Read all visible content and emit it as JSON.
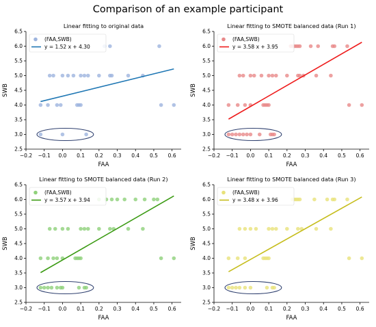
{
  "figure": {
    "title": "Comparison of an example participant"
  },
  "chart_data": [
    {
      "type": "scatter",
      "title": "Linear fitting to original data",
      "xlabel": "FAA",
      "ylabel": "SWB",
      "xlim": [
        -0.2,
        0.65
      ],
      "ylim": [
        2.5,
        6.5
      ],
      "xticks": [
        "−0.2",
        "−0.1",
        "0.0",
        "0.1",
        "0.2",
        "0.3",
        "0.4",
        "0.5",
        "0.6"
      ],
      "yticks": [
        "2.5",
        "3.0",
        "3.5",
        "4.0",
        "4.5",
        "5.0",
        "5.5",
        "6.0",
        "6.5"
      ],
      "legend_position": "top-left",
      "series": [
        {
          "name": "(FAA,SWB)",
          "kind": "points",
          "color": "#9db4de",
          "points": [
            [
              -0.12,
              3.0
            ],
            [
              0.0,
              3.0
            ],
            [
              0.13,
              3.0
            ],
            [
              -0.12,
              4.0
            ],
            [
              -0.08,
              4.0
            ],
            [
              -0.03,
              4.0
            ],
            [
              -0.01,
              4.0
            ],
            [
              0.08,
              4.0
            ],
            [
              0.09,
              4.0
            ],
            [
              0.1,
              4.0
            ],
            [
              0.54,
              4.0
            ],
            [
              0.61,
              4.0
            ],
            [
              -0.07,
              5.0
            ],
            [
              -0.05,
              5.0
            ],
            [
              0.0,
              5.0
            ],
            [
              0.03,
              5.0
            ],
            [
              0.06,
              5.0
            ],
            [
              0.1,
              5.0
            ],
            [
              0.12,
              5.0
            ],
            [
              0.14,
              5.0
            ],
            [
              0.2,
              5.0
            ],
            [
              0.26,
              5.0
            ],
            [
              0.27,
              5.0
            ],
            [
              0.36,
              5.0
            ],
            [
              0.44,
              5.0
            ],
            [
              0.23,
              6.0
            ],
            [
              0.26,
              6.0
            ],
            [
              0.53,
              6.0
            ]
          ]
        },
        {
          "name": "y = 1.52 x + 4.30",
          "kind": "line",
          "color": "#1f77b4",
          "slope": 1.52,
          "intercept": 4.3,
          "x_range": [
            -0.12,
            0.61
          ]
        }
      ],
      "annotations": [
        "ellipse around SWB = 3.0 points"
      ]
    },
    {
      "type": "scatter",
      "title": "Linear fitting to SMOTE balanced data (Run 1)",
      "xlabel": "FAA",
      "ylabel": "SWB",
      "xlim": [
        -0.2,
        0.65
      ],
      "ylim": [
        2.5,
        6.5
      ],
      "xticks": [
        "−0.2",
        "−0.1",
        "0.0",
        "0.1",
        "0.2",
        "0.3",
        "0.4",
        "0.5",
        "0.6"
      ],
      "yticks": [
        "2.5",
        "3.0",
        "3.5",
        "4.0",
        "4.5",
        "5.0",
        "5.5",
        "6.0",
        "6.5"
      ],
      "legend_position": "top-left",
      "series": [
        {
          "name": "(FAA,SWB)",
          "kind": "points",
          "color": "#e8898a",
          "points": [
            [
              -0.12,
              3.0
            ],
            [
              -0.1,
              3.0
            ],
            [
              -0.08,
              3.0
            ],
            [
              -0.06,
              3.0
            ],
            [
              -0.04,
              3.0
            ],
            [
              -0.02,
              3.0
            ],
            [
              0.0,
              3.0
            ],
            [
              0.05,
              3.0
            ],
            [
              0.11,
              3.0
            ],
            [
              0.12,
              3.0
            ],
            [
              0.13,
              3.0
            ],
            [
              -0.12,
              4.0
            ],
            [
              -0.07,
              4.0
            ],
            [
              -0.03,
              4.0
            ],
            [
              0.0,
              4.0
            ],
            [
              0.07,
              4.0
            ],
            [
              0.08,
              4.0
            ],
            [
              0.09,
              4.0
            ],
            [
              0.1,
              4.0
            ],
            [
              0.54,
              4.0
            ],
            [
              0.61,
              4.0
            ],
            [
              -0.06,
              5.0
            ],
            [
              -0.04,
              5.0
            ],
            [
              0.0,
              5.0
            ],
            [
              0.02,
              5.0
            ],
            [
              0.06,
              5.0
            ],
            [
              0.1,
              5.0
            ],
            [
              0.12,
              5.0
            ],
            [
              0.14,
              5.0
            ],
            [
              0.2,
              5.0
            ],
            [
              0.26,
              5.0
            ],
            [
              0.27,
              5.0
            ],
            [
              0.29,
              5.0
            ],
            [
              0.36,
              5.0
            ],
            [
              0.44,
              5.0
            ],
            [
              0.22,
              6.0
            ],
            [
              0.23,
              6.0
            ],
            [
              0.24,
              6.0
            ],
            [
              0.25,
              6.0
            ],
            [
              0.26,
              6.0
            ],
            [
              0.27,
              6.0
            ],
            [
              0.33,
              6.0
            ],
            [
              0.37,
              6.0
            ],
            [
              0.45,
              6.0
            ],
            [
              0.46,
              6.0
            ],
            [
              0.53,
              6.0
            ]
          ]
        },
        {
          "name": "y = 3.58 x + 3.95",
          "kind": "line",
          "color": "#ee1c1c",
          "slope": 3.58,
          "intercept": 3.95,
          "x_range": [
            -0.12,
            0.61
          ]
        }
      ],
      "annotations": [
        "ellipse around SWB = 3.0 points"
      ]
    },
    {
      "type": "scatter",
      "title": "Linear fitting to SMOTE balanced data (Run 2)",
      "xlabel": "FAA",
      "ylabel": "SWB",
      "xlim": [
        -0.2,
        0.65
      ],
      "ylim": [
        2.5,
        6.5
      ],
      "xticks": [
        "−0.2",
        "−0.1",
        "0.0",
        "0.1",
        "0.2",
        "0.3",
        "0.4",
        "0.5",
        "0.6"
      ],
      "yticks": [
        "2.5",
        "3.0",
        "3.5",
        "4.0",
        "4.5",
        "5.0",
        "5.5",
        "6.0",
        "6.5"
      ],
      "legend_position": "top-left",
      "series": [
        {
          "name": "(FAA,SWB)",
          "kind": "points",
          "color": "#8fd17a",
          "points": [
            [
              -0.12,
              3.0
            ],
            [
              -0.1,
              3.0
            ],
            [
              -0.08,
              3.0
            ],
            [
              -0.06,
              3.0
            ],
            [
              -0.03,
              3.0
            ],
            [
              -0.01,
              3.0
            ],
            [
              0.0,
              3.0
            ],
            [
              0.09,
              3.0
            ],
            [
              0.12,
              3.0
            ],
            [
              0.13,
              3.0
            ],
            [
              -0.12,
              4.0
            ],
            [
              -0.08,
              4.0
            ],
            [
              -0.05,
              4.0
            ],
            [
              -0.03,
              4.0
            ],
            [
              0.0,
              4.0
            ],
            [
              0.07,
              4.0
            ],
            [
              0.08,
              4.0
            ],
            [
              0.09,
              4.0
            ],
            [
              0.1,
              4.0
            ],
            [
              0.54,
              4.0
            ],
            [
              0.61,
              4.0
            ],
            [
              -0.07,
              5.0
            ],
            [
              -0.04,
              5.0
            ],
            [
              0.0,
              5.0
            ],
            [
              0.03,
              5.0
            ],
            [
              0.1,
              5.0
            ],
            [
              0.12,
              5.0
            ],
            [
              0.14,
              5.0
            ],
            [
              0.2,
              5.0
            ],
            [
              0.26,
              5.0
            ],
            [
              0.28,
              5.0
            ],
            [
              0.36,
              5.0
            ],
            [
              0.44,
              5.0
            ],
            [
              0.2,
              6.0
            ],
            [
              0.24,
              6.0
            ],
            [
              0.27,
              6.0
            ],
            [
              0.3,
              6.0
            ],
            [
              0.34,
              6.0
            ],
            [
              0.4,
              6.0
            ],
            [
              0.45,
              6.0
            ],
            [
              0.5,
              6.0
            ],
            [
              0.52,
              6.0
            ]
          ]
        },
        {
          "name": "y = 3.57 x + 3.94",
          "kind": "line",
          "color": "#3a9a12",
          "slope": 3.57,
          "intercept": 3.94,
          "x_range": [
            -0.12,
            0.61
          ]
        }
      ],
      "annotations": [
        "ellipse around SWB = 3.0 points"
      ]
    },
    {
      "type": "scatter",
      "title": "Linear fitting to SMOTE balanced data (Run 3)",
      "xlabel": "FAA",
      "ylabel": "SWB",
      "xlim": [
        -0.2,
        0.65
      ],
      "ylim": [
        2.5,
        6.5
      ],
      "xticks": [
        "−0.2",
        "−0.1",
        "0.0",
        "0.1",
        "0.2",
        "0.3",
        "0.4",
        "0.5",
        "0.6"
      ],
      "yticks": [
        "2.5",
        "3.0",
        "3.5",
        "4.0",
        "4.5",
        "5.0",
        "5.5",
        "6.0",
        "6.5"
      ],
      "legend_position": "top-left",
      "series": [
        {
          "name": "(FAA,SWB)",
          "kind": "points",
          "color": "#e8e27a",
          "points": [
            [
              -0.12,
              3.0
            ],
            [
              -0.1,
              3.0
            ],
            [
              -0.08,
              3.0
            ],
            [
              -0.06,
              3.0
            ],
            [
              -0.03,
              3.0
            ],
            [
              0.0,
              3.0
            ],
            [
              0.09,
              3.0
            ],
            [
              0.12,
              3.0
            ],
            [
              0.13,
              3.0
            ],
            [
              -0.12,
              4.0
            ],
            [
              -0.07,
              4.0
            ],
            [
              -0.03,
              4.0
            ],
            [
              0.07,
              4.0
            ],
            [
              0.08,
              4.0
            ],
            [
              0.09,
              4.0
            ],
            [
              0.1,
              4.0
            ],
            [
              0.54,
              4.0
            ],
            [
              0.61,
              4.0
            ],
            [
              -0.06,
              5.0
            ],
            [
              -0.03,
              5.0
            ],
            [
              0.0,
              5.0
            ],
            [
              0.03,
              5.0
            ],
            [
              0.1,
              5.0
            ],
            [
              0.12,
              5.0
            ],
            [
              0.14,
              5.0
            ],
            [
              0.2,
              5.0
            ],
            [
              0.26,
              5.0
            ],
            [
              0.28,
              5.0
            ],
            [
              0.36,
              5.0
            ],
            [
              0.44,
              5.0
            ],
            [
              0.23,
              6.0
            ],
            [
              0.24,
              6.0
            ],
            [
              0.25,
              6.0
            ],
            [
              0.26,
              6.0
            ],
            [
              0.27,
              6.0
            ],
            [
              0.35,
              6.0
            ],
            [
              0.42,
              6.0
            ],
            [
              0.45,
              6.0
            ],
            [
              0.46,
              6.0
            ],
            [
              0.53,
              6.0
            ]
          ]
        },
        {
          "name": "y = 3.48 x + 3.96",
          "kind": "line",
          "color": "#c6bd1c",
          "slope": 3.48,
          "intercept": 3.96,
          "x_range": [
            -0.12,
            0.61
          ]
        }
      ],
      "annotations": [
        "ellipse around SWB = 3.0 points"
      ]
    }
  ]
}
